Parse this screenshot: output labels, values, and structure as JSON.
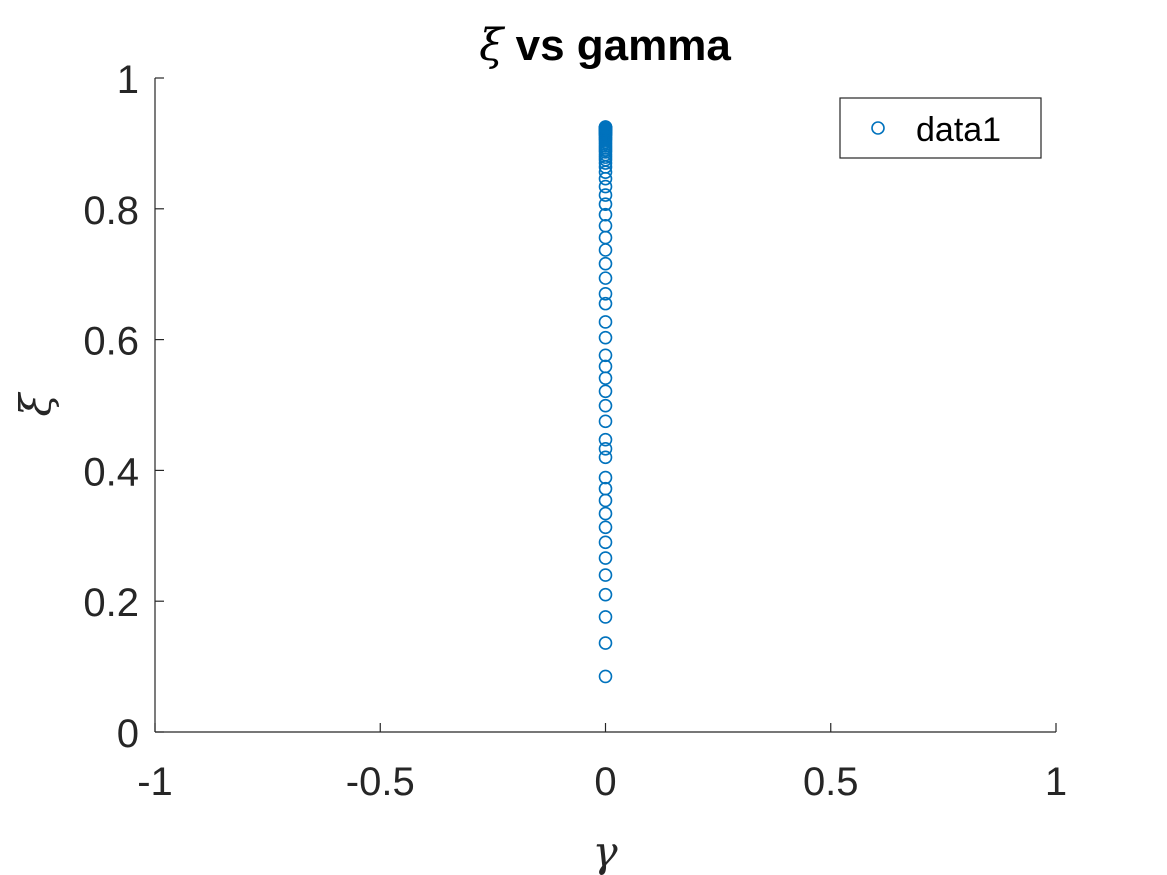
{
  "chart_data": {
    "type": "scatter",
    "title_symbol": "ξ",
    "title_text": " vs gamma",
    "xlabel": "γ",
    "ylabel": "ξ",
    "xlim": [
      -1,
      1
    ],
    "ylim": [
      0,
      1
    ],
    "xticks": [
      -1,
      -0.5,
      0,
      0.5,
      1
    ],
    "xtick_labels": [
      "-1",
      "-0.5",
      "0",
      "0.5",
      "1"
    ],
    "yticks": [
      0,
      0.2,
      0.4,
      0.6,
      0.8,
      1
    ],
    "ytick_labels": [
      "0",
      "0.2",
      "0.4",
      "0.6",
      "0.8",
      "1"
    ],
    "grid": false,
    "legend_position": "top-right",
    "series_color": "#0072BD",
    "series": [
      {
        "name": "data1",
        "marker": "circle-open",
        "x": [
          0,
          0,
          0,
          0,
          0,
          0,
          0,
          0,
          0,
          0,
          0,
          0,
          0,
          0,
          0,
          0,
          0,
          0,
          0,
          0,
          0,
          0,
          0,
          0,
          0,
          0,
          0,
          0,
          0,
          0,
          0,
          0,
          0,
          0,
          0,
          0,
          0,
          0,
          0,
          0,
          0,
          0,
          0,
          0,
          0,
          0,
          0,
          0,
          0,
          0,
          0,
          0,
          0,
          0,
          0,
          0,
          0,
          0,
          0,
          0,
          0,
          0,
          0,
          0,
          0,
          0,
          0,
          0,
          0,
          0
        ],
        "y": [
          0.085,
          0.136,
          0.176,
          0.21,
          0.24,
          0.266,
          0.29,
          0.313,
          0.334,
          0.354,
          0.372,
          0.389,
          0.42,
          0.433,
          0.447,
          0.475,
          0.499,
          0.521,
          0.541,
          0.559,
          0.576,
          0.603,
          0.627,
          0.655,
          0.67,
          0.694,
          0.716,
          0.737,
          0.756,
          0.774,
          0.791,
          0.807,
          0.821,
          0.834,
          0.846,
          0.856,
          0.864,
          0.87,
          0.875,
          0.879,
          0.883,
          0.887,
          0.89,
          0.893,
          0.896,
          0.899,
          0.902,
          0.905,
          0.907,
          0.909,
          0.911,
          0.913,
          0.914,
          0.915,
          0.916,
          0.917,
          0.918,
          0.919,
          0.92,
          0.921,
          0.921,
          0.922,
          0.922,
          0.923,
          0.923,
          0.924,
          0.924,
          0.924,
          0.925,
          0.925
        ]
      }
    ]
  }
}
